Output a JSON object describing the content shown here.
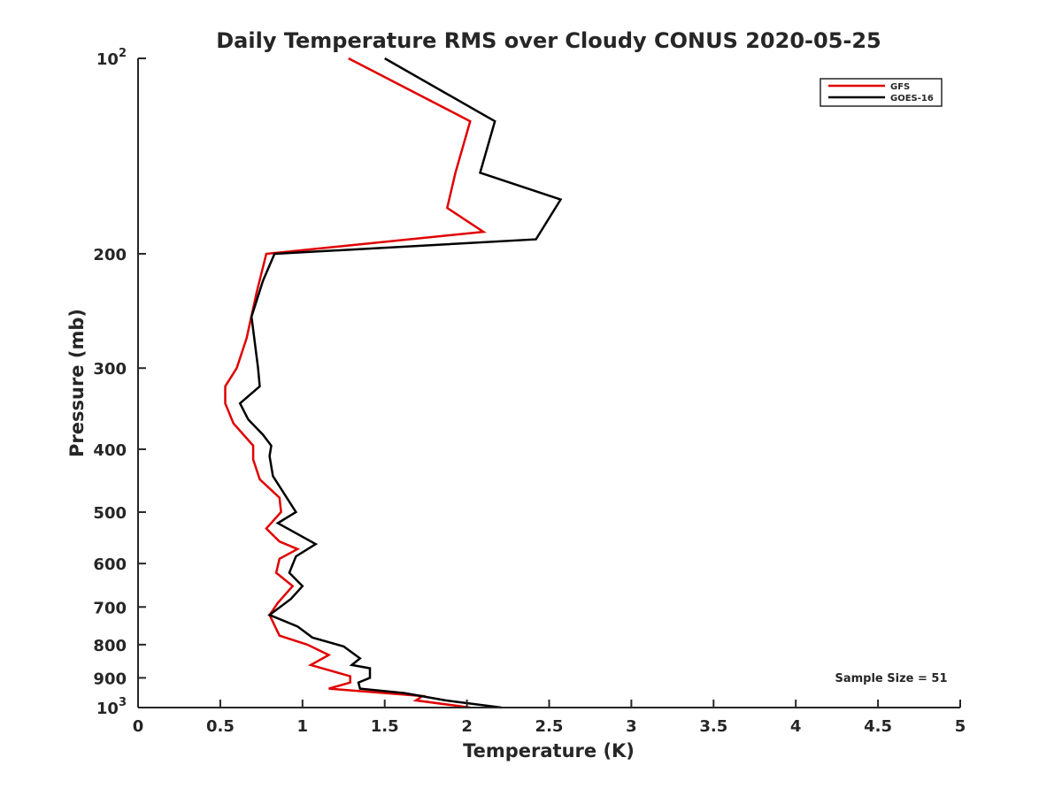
{
  "chart_data": {
    "type": "line",
    "title": "Daily Temperature RMS over Cloudy CONUS 2020-05-25",
    "xlabel": "Temperature (K)",
    "ylabel": "Pressure (mb)",
    "xlim": [
      0,
      5
    ],
    "ylim": [
      100,
      1000
    ],
    "y_scale": "log",
    "y_reversed": true,
    "grid": false,
    "legend_position": "top-right",
    "x_ticks": [
      0,
      0.5,
      1,
      1.5,
      2,
      2.5,
      3,
      3.5,
      4,
      4.5,
      5
    ],
    "x_tick_labels": [
      "0",
      "0.5",
      "1",
      "1.5",
      "2",
      "2.5",
      "3",
      "3.5",
      "4",
      "4.5",
      "5"
    ],
    "y_ticks": [
      {
        "value": 100,
        "base": "10",
        "exp": "2",
        "label": ""
      },
      {
        "value": 200,
        "base": "",
        "exp": "",
        "label": "200"
      },
      {
        "value": 300,
        "base": "",
        "exp": "",
        "label": "300"
      },
      {
        "value": 400,
        "base": "",
        "exp": "",
        "label": "400"
      },
      {
        "value": 500,
        "base": "",
        "exp": "",
        "label": "500"
      },
      {
        "value": 600,
        "base": "",
        "exp": "",
        "label": "600"
      },
      {
        "value": 700,
        "base": "",
        "exp": "",
        "label": "700"
      },
      {
        "value": 800,
        "base": "",
        "exp": "",
        "label": "800"
      },
      {
        "value": 900,
        "base": "",
        "exp": "",
        "label": "900"
      },
      {
        "value": 1000,
        "base": "10",
        "exp": "3",
        "label": ""
      }
    ],
    "series": [
      {
        "name": "GFS",
        "color": "#e00000",
        "points": [
          [
            1.28,
            100
          ],
          [
            2.02,
            125
          ],
          [
            1.93,
            150
          ],
          [
            1.88,
            170
          ],
          [
            2.1,
            185
          ],
          [
            0.78,
            200
          ],
          [
            0.72,
            230
          ],
          [
            0.66,
            270
          ],
          [
            0.6,
            300
          ],
          [
            0.53,
            320
          ],
          [
            0.53,
            340
          ],
          [
            0.58,
            365
          ],
          [
            0.7,
            395
          ],
          [
            0.7,
            415
          ],
          [
            0.74,
            445
          ],
          [
            0.86,
            475
          ],
          [
            0.87,
            500
          ],
          [
            0.78,
            530
          ],
          [
            0.86,
            555
          ],
          [
            0.97,
            570
          ],
          [
            0.86,
            590
          ],
          [
            0.84,
            620
          ],
          [
            0.94,
            650
          ],
          [
            0.85,
            690
          ],
          [
            0.8,
            720
          ],
          [
            0.86,
            775
          ],
          [
            1.03,
            800
          ],
          [
            1.16,
            830
          ],
          [
            1.05,
            860
          ],
          [
            1.29,
            895
          ],
          [
            1.29,
            915
          ],
          [
            1.16,
            935
          ],
          [
            1.73,
            960
          ],
          [
            1.69,
            975
          ],
          [
            2.02,
            1000
          ]
        ]
      },
      {
        "name": "GOES-16",
        "color": "#000000",
        "points": [
          [
            1.5,
            100
          ],
          [
            2.17,
            125
          ],
          [
            2.08,
            150
          ],
          [
            2.57,
            165
          ],
          [
            2.42,
            190
          ],
          [
            0.83,
            200
          ],
          [
            0.76,
            220
          ],
          [
            0.69,
            250
          ],
          [
            0.73,
            300
          ],
          [
            0.74,
            320
          ],
          [
            0.62,
            340
          ],
          [
            0.67,
            360
          ],
          [
            0.76,
            380
          ],
          [
            0.81,
            395
          ],
          [
            0.8,
            410
          ],
          [
            0.82,
            440
          ],
          [
            0.96,
            500
          ],
          [
            0.85,
            520
          ],
          [
            1.08,
            560
          ],
          [
            0.96,
            585
          ],
          [
            0.92,
            620
          ],
          [
            1.0,
            650
          ],
          [
            0.93,
            680
          ],
          [
            0.8,
            720
          ],
          [
            0.97,
            750
          ],
          [
            1.06,
            780
          ],
          [
            1.25,
            805
          ],
          [
            1.35,
            840
          ],
          [
            1.3,
            860
          ],
          [
            1.41,
            870
          ],
          [
            1.41,
            900
          ],
          [
            1.34,
            915
          ],
          [
            1.35,
            935
          ],
          [
            1.62,
            950
          ],
          [
            1.87,
            975
          ],
          [
            2.21,
            1000
          ]
        ]
      }
    ],
    "annotation": "Sample Size = 51"
  }
}
